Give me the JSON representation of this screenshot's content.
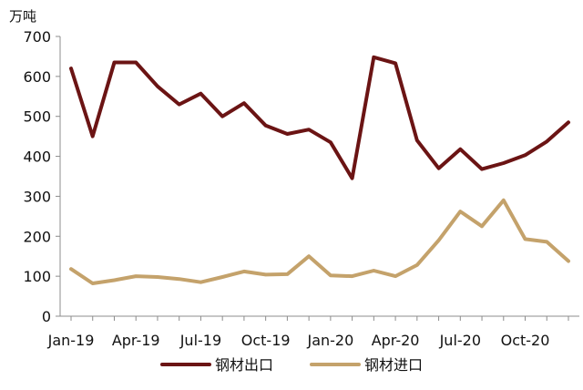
{
  "chart_data": {
    "type": "line",
    "unit_label": "万吨",
    "yticks": [
      0,
      100,
      200,
      300,
      400,
      500,
      600,
      700
    ],
    "ylim": [
      0,
      700
    ],
    "x": [
      "Jan-19",
      "Feb-19",
      "Mar-19",
      "Apr-19",
      "May-19",
      "Jun-19",
      "Jul-19",
      "Aug-19",
      "Sep-19",
      "Oct-19",
      "Nov-19",
      "Dec-19",
      "Jan-20",
      "Feb-20",
      "Mar-20",
      "Apr-20",
      "May-20",
      "Jun-20",
      "Jul-20",
      "Aug-20",
      "Sep-20",
      "Oct-20",
      "Nov-20",
      "Dec-20"
    ],
    "xtick_labels": [
      "Jan-19",
      "Apr-19",
      "Jul-19",
      "Oct-19",
      "Jan-20",
      "Apr-20",
      "Jul-20",
      "Oct-20"
    ],
    "grid": false,
    "legend_position": "bottom",
    "series": [
      {
        "name": "钢材出口",
        "color": "#6b1414",
        "values": [
          620,
          450,
          635,
          635,
          575,
          530,
          557,
          500,
          533,
          477,
          456,
          467,
          435,
          345,
          648,
          633,
          440,
          370,
          418,
          368,
          383,
          403,
          437,
          485
        ]
      },
      {
        "name": "钢材进口",
        "color": "#c4a26b",
        "values": [
          118,
          82,
          90,
          100,
          98,
          93,
          85,
          98,
          112,
          104,
          105,
          150,
          102,
          100,
          114,
          100,
          128,
          190,
          262,
          225,
          290,
          193,
          186,
          138
        ]
      }
    ]
  }
}
